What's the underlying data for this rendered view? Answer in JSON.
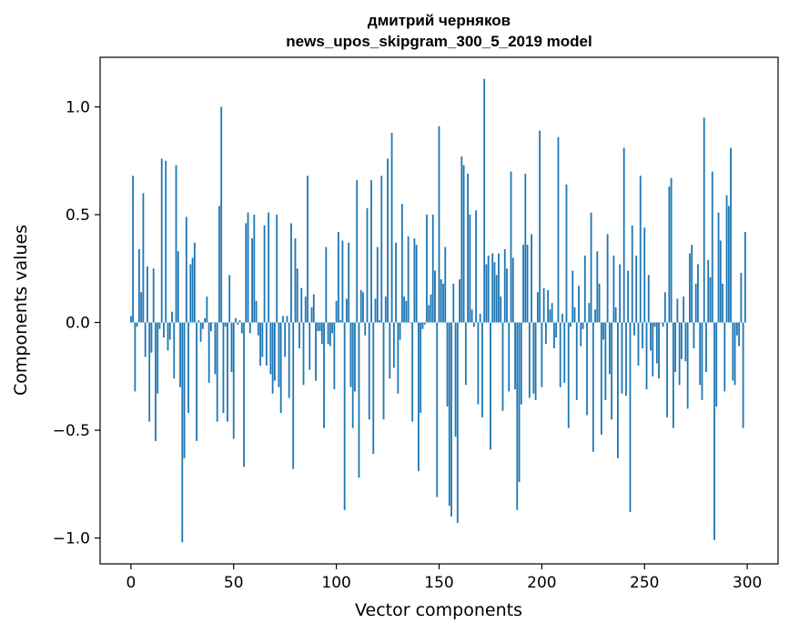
{
  "chart_data": {
    "type": "bar",
    "title_lines": [
      "дмитрий черняков",
      "news_upos_skipgram_300_5_2019 model"
    ],
    "xlabel": "Vector components",
    "ylabel": "Components values",
    "xlim": [
      -15,
      315
    ],
    "ylim": [
      -1.12,
      1.23
    ],
    "x_ticks": [
      0,
      50,
      100,
      150,
      200,
      250,
      300
    ],
    "x_tick_labels": [
      "0",
      "50",
      "100",
      "150",
      "200",
      "250",
      "300"
    ],
    "y_ticks": [
      -1.0,
      -0.5,
      0.0,
      0.5,
      1.0
    ],
    "y_tick_labels": [
      "−1.0",
      "−0.5",
      "0.0",
      "0.5",
      "1.0"
    ],
    "grid": false,
    "color": "#1f77b4",
    "x": "0..299 (one bar per vector component index)",
    "values": [
      0.03,
      0.68,
      -0.32,
      -0.02,
      0.34,
      0.14,
      0.6,
      -0.16,
      0.26,
      -0.46,
      -0.14,
      0.25,
      -0.55,
      -0.33,
      -0.03,
      0.76,
      -0.07,
      0.75,
      -0.13,
      -0.08,
      0.05,
      -0.26,
      0.73,
      0.33,
      -0.3,
      -1.02,
      -0.63,
      0.49,
      -0.42,
      0.27,
      0.3,
      0.37,
      -0.55,
      0.01,
      -0.09,
      -0.03,
      0.02,
      0.12,
      -0.28,
      -0.04,
      0.0,
      -0.24,
      -0.46,
      0.54,
      1.0,
      -0.42,
      -0.02,
      -0.46,
      0.22,
      -0.23,
      -0.54,
      0.02,
      -0.01,
      0.01,
      -0.05,
      -0.67,
      0.46,
      0.51,
      -0.05,
      0.39,
      0.5,
      0.1,
      -0.06,
      -0.2,
      -0.16,
      0.45,
      -0.2,
      0.51,
      -0.24,
      -0.33,
      -0.27,
      0.5,
      -0.3,
      -0.42,
      0.03,
      -0.16,
      0.03,
      -0.35,
      0.46,
      -0.68,
      0.39,
      0.25,
      -0.12,
      0.16,
      -0.29,
      0.12,
      0.68,
      -0.22,
      0.07,
      0.13,
      -0.27,
      -0.04,
      -0.04,
      -0.1,
      -0.49,
      0.35,
      -0.1,
      -0.11,
      -0.05,
      -0.31,
      0.1,
      0.42,
      0.01,
      0.38,
      -0.87,
      0.11,
      0.37,
      -0.3,
      -0.49,
      -0.32,
      0.66,
      -0.72,
      0.15,
      0.14,
      -0.06,
      0.53,
      -0.45,
      0.66,
      -0.61,
      0.11,
      0.35,
      0.01,
      0.68,
      -0.45,
      0.12,
      0.76,
      -0.26,
      0.88,
      -0.21,
      0.37,
      -0.33,
      -0.08,
      0.55,
      0.12,
      0.1,
      0.4,
      0.0,
      -0.46,
      0.39,
      0.36,
      -0.69,
      -0.42,
      -0.03,
      -0.01,
      0.5,
      0.08,
      0.13,
      0.5,
      0.24,
      -0.81,
      0.91,
      0.2,
      0.18,
      0.35,
      -0.39,
      -0.85,
      -0.9,
      0.18,
      -0.53,
      -0.93,
      0.2,
      0.77,
      0.73,
      -0.29,
      0.69,
      0.5,
      0.06,
      -0.02,
      0.52,
      -0.38,
      0.04,
      -0.44,
      1.13,
      0.27,
      0.31,
      -0.59,
      0.32,
      0.28,
      0.22,
      0.32,
      0.12,
      -0.41,
      0.34,
      0.25,
      -0.32,
      0.7,
      0.3,
      -0.31,
      -0.87,
      -0.74,
      -0.38,
      0.36,
      0.69,
      0.36,
      -0.35,
      0.41,
      -0.33,
      -0.36,
      0.14,
      0.89,
      -0.3,
      0.16,
      -0.1,
      0.15,
      0.06,
      0.09,
      -0.12,
      -0.07,
      0.86,
      -0.3,
      0.04,
      -0.28,
      0.64,
      -0.49,
      -0.02,
      0.24,
      0.07,
      -0.36,
      0.17,
      -0.11,
      -0.03,
      0.31,
      -0.43,
      0.09,
      0.51,
      -0.6,
      0.06,
      0.33,
      0.18,
      -0.52,
      -0.08,
      -0.36,
      0.41,
      -0.24,
      -0.45,
      0.31,
      0.07,
      -0.63,
      0.27,
      -0.33,
      0.81,
      -0.34,
      0.24,
      -0.88,
      0.45,
      -0.06,
      0.31,
      -0.2,
      0.68,
      -0.12,
      0.44,
      -0.31,
      0.22,
      -0.13,
      -0.25,
      -0.02,
      -0.19,
      -0.26,
      0.0,
      -0.02,
      0.14,
      -0.44,
      0.63,
      0.67,
      -0.49,
      -0.23,
      0.11,
      -0.29,
      -0.17,
      0.12,
      -0.18,
      -0.4,
      0.32,
      0.36,
      -0.12,
      0.18,
      0.27,
      -0.29,
      -0.36,
      0.95,
      -0.23,
      0.29,
      0.21,
      0.7,
      -1.01,
      -0.39,
      0.51,
      0.38,
      0.18,
      -0.32,
      0.59,
      0.54,
      0.81,
      -0.27,
      -0.29,
      -0.06,
      -0.11,
      0.23,
      -0.49,
      0.42
    ]
  }
}
